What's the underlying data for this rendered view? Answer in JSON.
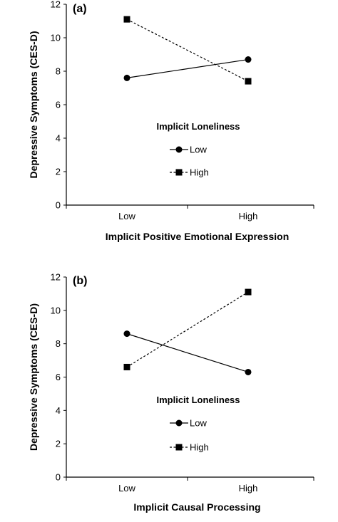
{
  "chart_data": [
    {
      "type": "line",
      "panel_label": "(a)",
      "categories": [
        "Low",
        "High"
      ],
      "xlabel": "Implicit Positive Emotional Expression",
      "ylabel": "Depressive Symptoms (CES-D)",
      "ylim": [
        0,
        12
      ],
      "yticks": [
        "0",
        "2",
        "4",
        "6",
        "8",
        "10",
        "12"
      ],
      "legend": {
        "title": "Implicit Loneliness",
        "placement": "center"
      },
      "series": [
        {
          "name": "Low",
          "values": [
            7.6,
            8.7
          ],
          "marker": "circle",
          "line": "solid"
        },
        {
          "name": "High",
          "values": [
            11.1,
            7.4
          ],
          "marker": "square",
          "line": "dashed"
        }
      ],
      "grid": false
    },
    {
      "type": "line",
      "panel_label": "(b)",
      "categories": [
        "Low",
        "High"
      ],
      "xlabel": "Implicit Causal Processing",
      "ylabel": "Depressive Symptoms (CES-D)",
      "ylim": [
        0,
        12
      ],
      "yticks": [
        "0",
        "2",
        "4",
        "6",
        "8",
        "10",
        "12"
      ],
      "legend": {
        "title": "Implicit Loneliness",
        "placement": "center"
      },
      "series": [
        {
          "name": "Low",
          "values": [
            8.6,
            6.3
          ],
          "marker": "circle",
          "line": "solid"
        },
        {
          "name": "High",
          "values": [
            6.6,
            11.1
          ],
          "marker": "square",
          "line": "dashed"
        }
      ],
      "grid": false
    }
  ]
}
